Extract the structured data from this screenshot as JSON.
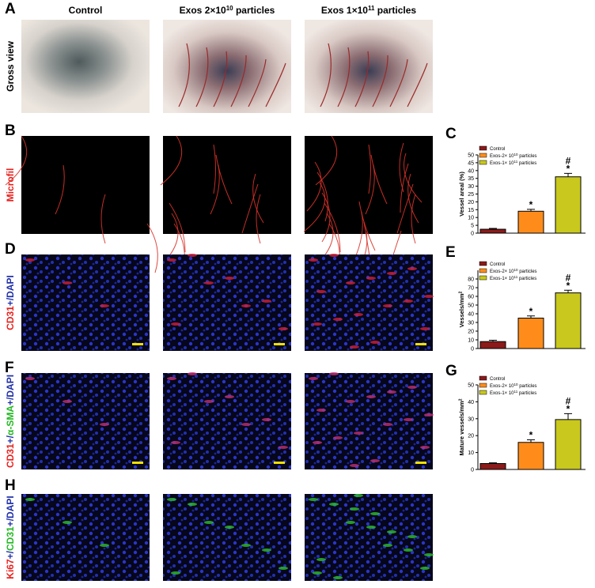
{
  "panel_labels": [
    "A",
    "B",
    "C",
    "D",
    "E",
    "F",
    "G",
    "H"
  ],
  "column_headers": [
    {
      "text": "Control"
    },
    {
      "text": "Exos 2×10",
      "sup": "10",
      "tail": " particles"
    },
    {
      "text": "Exos 1×10",
      "sup": "11",
      "tail": " particles"
    }
  ],
  "row_labels": [
    [
      {
        "text": "Gross view",
        "color": "#000000"
      }
    ],
    [
      {
        "text": "Microfil",
        "color": "#e8201c"
      }
    ],
    [
      {
        "text": "CD31",
        "color": "#e8201c"
      },
      {
        "text": "+/DAPI",
        "color": "#1f2fa8"
      }
    ],
    [
      {
        "text": "CD31",
        "color": "#e8201c"
      },
      {
        "text": "+/",
        "color": "#1f2fa8"
      },
      {
        "text": "α-SMA",
        "color": "#22b822"
      },
      {
        "text": "+/DAPI",
        "color": "#1f2fa8"
      }
    ],
    [
      {
        "text": "Ki67",
        "color": "#e8201c"
      },
      {
        "text": "+/",
        "color": "#1f2fa8"
      },
      {
        "text": "CD31",
        "color": "#22b822"
      },
      {
        "text": "+/DAPI",
        "color": "#1f2fa8"
      }
    ]
  ],
  "chart_data": [
    {
      "type": "bar",
      "y_label": {
        "text": "Vessel areal (%)"
      },
      "legend": [
        {
          "text": "Control"
        },
        {
          "text": "Exos-2× 10",
          "sup": "10",
          "tail": " particles"
        },
        {
          "text": "Exos-1× 10",
          "sup": "11",
          "tail": " particles"
        }
      ],
      "colors": [
        "#8b1a1a",
        "#ff8c1a",
        "#c8c81e"
      ],
      "values": [
        2.5,
        14,
        36
      ],
      "errors": [
        0.5,
        1.2,
        2.2
      ],
      "annotations": [
        [],
        [
          "*"
        ],
        [
          "#",
          "*"
        ]
      ],
      "ylim": [
        0,
        50
      ],
      "yticks": [
        0,
        5,
        10,
        15,
        20,
        25,
        30,
        35,
        40,
        45,
        50
      ]
    },
    {
      "type": "bar",
      "y_label": {
        "text": "Vessels/mm",
        "sup": "2"
      },
      "legend": [
        {
          "text": "Control"
        },
        {
          "text": "Exos-2× 10",
          "sup": "10",
          "tail": " particles"
        },
        {
          "text": "Exos-1× 10",
          "sup": "11",
          "tail": " particles"
        }
      ],
      "colors": [
        "#8b1a1a",
        "#ff8c1a",
        "#c8c81e"
      ],
      "values": [
        8,
        35,
        64
      ],
      "errors": [
        1.5,
        2.5,
        3
      ],
      "annotations": [
        [],
        [
          "*"
        ],
        [
          "#",
          "*"
        ]
      ],
      "ylim": [
        0,
        90
      ],
      "yticks": [
        0,
        10,
        20,
        30,
        40,
        50,
        60,
        70,
        80
      ]
    },
    {
      "type": "bar",
      "y_label": {
        "text": "Mature vessels/mm",
        "sup": "2"
      },
      "legend": [
        {
          "text": "Control"
        },
        {
          "text": "Exos-2× 10",
          "sup": "10",
          "tail": " particles"
        },
        {
          "text": "Exos-1× 10",
          "sup": "11",
          "tail": " particles"
        }
      ],
      "colors": [
        "#8b1a1a",
        "#ff8c1a",
        "#c8c81e"
      ],
      "values": [
        3.5,
        16,
        29.5
      ],
      "errors": [
        0.4,
        1.5,
        3.5
      ],
      "annotations": [
        [],
        [
          "*"
        ],
        [
          "#",
          "*"
        ]
      ],
      "ylim": [
        0,
        50
      ],
      "yticks": [
        0,
        10,
        20,
        30,
        40,
        50
      ]
    }
  ]
}
